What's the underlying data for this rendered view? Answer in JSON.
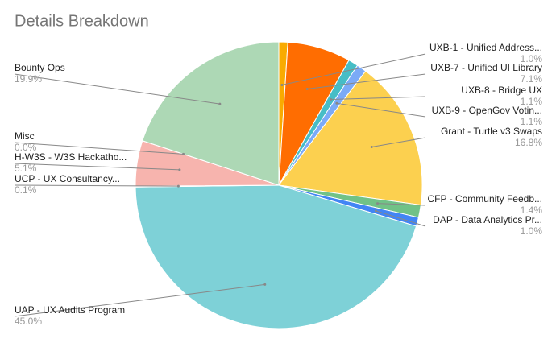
{
  "chart_data": {
    "type": "pie",
    "title": "Details Breakdown",
    "categories": [
      "UXB-1 - Unified Address...",
      "UXB-7 - Unified UI Library",
      "UXB-8 - Bridge UX",
      "UXB-9 - OpenGov Votin...",
      "Grant - Turtle v3 Swaps",
      "CFP - Community Feedb...",
      "DAP - Data Analytics Pr...",
      "UAP - UX Audits Program",
      "UCP - UX Consultancy...",
      "H-W3S - W3S Hackatho...",
      "Misc",
      "Bounty Ops"
    ],
    "values": [
      1.0,
      7.1,
      1.1,
      1.1,
      16.8,
      1.4,
      1.0,
      45.0,
      0.1,
      5.1,
      0.0,
      19.9
    ],
    "value_labels": [
      "1.0%",
      "7.1%",
      "1.1%",
      "1.1%",
      "16.8%",
      "1.4%",
      "1.0%",
      "45.0%",
      "0.1%",
      "5.1%",
      "0.0%",
      "19.9%"
    ],
    "colors": [
      "#f9ab00",
      "#ff6d01",
      "#46bdc6",
      "#7baaf7",
      "#fcd04f",
      "#71c287",
      "#4285f4",
      "#7ed1d7",
      "#f4cccc",
      "#f7b4ae",
      "#b7b7b7",
      "#add8b5"
    ]
  }
}
